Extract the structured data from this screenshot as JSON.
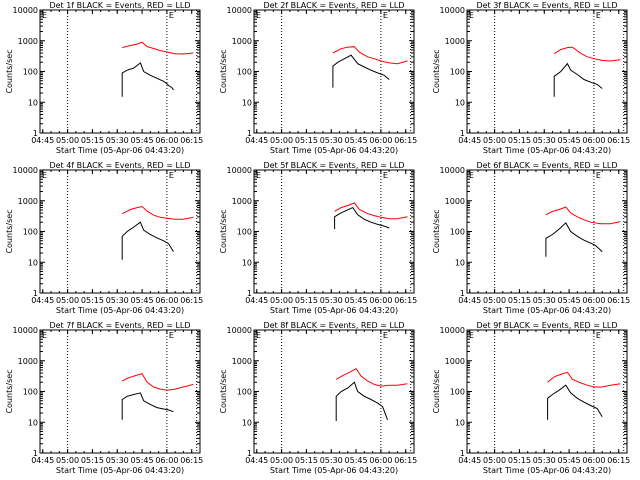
{
  "figure": {
    "ylabel": "Counts/sec",
    "xlabel": "Start Time (05-Apr-06 04:43:20)",
    "x_ticks": [
      "04:45",
      "05:00",
      "05:15",
      "05:30",
      "05:45",
      "06:00",
      "06:15"
    ],
    "y_ticks": [
      "1",
      "10",
      "100",
      "1000",
      "10000"
    ],
    "marker_label": "E",
    "colors": {
      "events": "#000000",
      "lld": "#ff0000"
    }
  },
  "chart_data": [
    {
      "type": "line",
      "title": "Det 1f BLACK = Events, RED = LLD",
      "xlabel": "Start Time (05-Apr-06 04:43:20)",
      "ylabel": "Counts/sec",
      "x_ticks": [
        "04:45",
        "05:00",
        "05:15",
        "05:30",
        "05:45",
        "06:00",
        "06:15"
      ],
      "ylim": [
        1,
        10000
      ],
      "y_scale": "log",
      "xlim": [
        "04:43:20",
        "06:20:00"
      ],
      "markers": [
        {
          "x": "05:00",
          "label": ""
        },
        {
          "x": "06:00",
          "label": "E"
        },
        {
          "x": "06:18",
          "label": ""
        }
      ],
      "series": [
        {
          "name": "Events",
          "color": "#000000",
          "x": [
            "05:33",
            "05:33",
            "05:36",
            "05:40",
            "05:44",
            "05:46",
            "05:50",
            "05:54",
            "05:58",
            "06:00",
            "06:01",
            "06:03",
            "06:04"
          ],
          "values": [
            15,
            90,
            110,
            130,
            190,
            100,
            75,
            60,
            48,
            40,
            35,
            30,
            25
          ]
        },
        {
          "name": "LLD",
          "color": "#ff0000",
          "x": [
            "05:33",
            "05:38",
            "05:42",
            "05:45",
            "05:48",
            "05:52",
            "05:56",
            "06:00",
            "06:05",
            "06:10",
            "06:16"
          ],
          "values": [
            600,
            700,
            780,
            900,
            650,
            560,
            480,
            430,
            380,
            370,
            400
          ]
        }
      ]
    },
    {
      "type": "line",
      "title": "Det 2f BLACK = Events, RED = LLD",
      "xlabel": "Start Time (05-Apr-06 04:43:20)",
      "ylabel": "Counts/sec",
      "x_ticks": [
        "04:45",
        "05:00",
        "05:15",
        "05:30",
        "05:45",
        "06:00",
        "06:15"
      ],
      "ylim": [
        1,
        10000
      ],
      "y_scale": "log",
      "xlim": [
        "04:43:20",
        "06:20:00"
      ],
      "markers": [
        {
          "x": "05:00",
          "label": ""
        },
        {
          "x": "06:00",
          "label": "E"
        },
        {
          "x": "06:18",
          "label": ""
        }
      ],
      "series": [
        {
          "name": "Events",
          "color": "#000000",
          "x": [
            "05:31",
            "05:31",
            "05:34",
            "05:38",
            "05:42",
            "05:46",
            "05:50",
            "05:54",
            "05:58",
            "06:02",
            "06:05"
          ],
          "values": [
            30,
            150,
            200,
            260,
            340,
            180,
            140,
            110,
            90,
            75,
            55
          ]
        },
        {
          "name": "LLD",
          "color": "#ff0000",
          "x": [
            "05:31",
            "05:36",
            "05:40",
            "05:44",
            "05:47",
            "05:52",
            "05:56",
            "06:00",
            "06:05",
            "06:10",
            "06:16"
          ],
          "values": [
            400,
            550,
            620,
            640,
            420,
            300,
            260,
            220,
            190,
            180,
            220
          ]
        }
      ]
    },
    {
      "type": "line",
      "title": "Det 3f BLACK = Events, RED = LLD",
      "xlabel": "Start Time (05-Apr-06 04:43:20)",
      "ylabel": "Counts/sec",
      "x_ticks": [
        "04:45",
        "05:00",
        "05:15",
        "05:30",
        "05:45",
        "06:00",
        "06:15"
      ],
      "ylim": [
        1,
        10000
      ],
      "y_scale": "log",
      "xlim": [
        "04:43:20",
        "06:20:00"
      ],
      "markers": [
        {
          "x": "05:00",
          "label": ""
        },
        {
          "x": "06:00",
          "label": "E"
        },
        {
          "x": "06:18",
          "label": ""
        }
      ],
      "series": [
        {
          "name": "Events",
          "color": "#000000",
          "x": [
            "05:36",
            "05:36",
            "05:40",
            "05:44",
            "05:46",
            "05:50",
            "05:54",
            "05:58",
            "06:02",
            "06:05"
          ],
          "values": [
            15,
            70,
            100,
            180,
            110,
            80,
            55,
            45,
            38,
            28
          ]
        },
        {
          "name": "LLD",
          "color": "#ff0000",
          "x": [
            "05:36",
            "05:40",
            "05:44",
            "05:47",
            "05:52",
            "05:56",
            "06:00",
            "06:05",
            "06:10",
            "06:16"
          ],
          "values": [
            380,
            520,
            600,
            620,
            390,
            300,
            260,
            230,
            220,
            240
          ]
        }
      ]
    },
    {
      "type": "line",
      "title": "Det 4f BLACK = Events, RED = LLD",
      "xlabel": "Start Time (05-Apr-06 04:43:20)",
      "ylabel": "Counts/sec",
      "x_ticks": [
        "04:45",
        "05:00",
        "05:15",
        "05:30",
        "05:45",
        "06:00",
        "06:15"
      ],
      "ylim": [
        1,
        10000
      ],
      "y_scale": "log",
      "xlim": [
        "04:43:20",
        "06:20:00"
      ],
      "markers": [
        {
          "x": "05:00",
          "label": ""
        },
        {
          "x": "06:00",
          "label": "E"
        },
        {
          "x": "06:18",
          "label": ""
        }
      ],
      "series": [
        {
          "name": "Events",
          "color": "#000000",
          "x": [
            "05:33",
            "05:33",
            "05:36",
            "05:40",
            "05:44",
            "05:46",
            "05:50",
            "05:54",
            "05:58",
            "06:01",
            "06:04"
          ],
          "values": [
            12,
            70,
            100,
            140,
            200,
            110,
            80,
            62,
            50,
            40,
            22
          ]
        },
        {
          "name": "LLD",
          "color": "#ff0000",
          "x": [
            "05:33",
            "05:38",
            "05:42",
            "05:45",
            "05:48",
            "05:52",
            "05:56",
            "06:00",
            "06:05",
            "06:10",
            "06:16"
          ],
          "values": [
            380,
            520,
            600,
            650,
            460,
            340,
            290,
            270,
            250,
            250,
            290
          ]
        }
      ]
    },
    {
      "type": "line",
      "title": "Det 5f BLACK = Events, RED = LLD",
      "xlabel": "Start Time (05-Apr-06 04:43:20)",
      "ylabel": "Counts/sec",
      "x_ticks": [
        "04:45",
        "05:00",
        "05:15",
        "05:30",
        "05:45",
        "06:00",
        "06:15"
      ],
      "ylim": [
        1,
        10000
      ],
      "y_scale": "log",
      "xlim": [
        "04:43:20",
        "06:20:00"
      ],
      "markers": [
        {
          "x": "05:00",
          "label": ""
        },
        {
          "x": "06:00",
          "label": "E"
        },
        {
          "x": "06:18",
          "label": ""
        }
      ],
      "series": [
        {
          "name": "Events",
          "color": "#000000",
          "x": [
            "05:32",
            "05:32",
            "05:35",
            "05:39",
            "05:43",
            "05:46",
            "05:50",
            "05:54",
            "05:58",
            "06:02",
            "06:05"
          ],
          "values": [
            120,
            300,
            380,
            480,
            600,
            350,
            250,
            200,
            170,
            150,
            130
          ]
        },
        {
          "name": "LLD",
          "color": "#ff0000",
          "x": [
            "05:32",
            "05:36",
            "05:40",
            "05:44",
            "05:47",
            "05:52",
            "05:56",
            "06:00",
            "06:05",
            "06:10",
            "06:16"
          ],
          "values": [
            450,
            600,
            700,
            850,
            520,
            380,
            330,
            290,
            260,
            260,
            300
          ]
        }
      ]
    },
    {
      "type": "line",
      "title": "Det 6f BLACK = Events, RED = LLD",
      "xlabel": "Start Time (05-Apr-06 04:43:20)",
      "ylabel": "Counts/sec",
      "x_ticks": [
        "04:45",
        "05:00",
        "05:15",
        "05:30",
        "05:45",
        "06:00",
        "06:15"
      ],
      "ylim": [
        1,
        10000
      ],
      "y_scale": "log",
      "xlim": [
        "04:43:20",
        "06:20:00"
      ],
      "markers": [
        {
          "x": "05:00",
          "label": ""
        },
        {
          "x": "06:00",
          "label": "E"
        },
        {
          "x": "06:18",
          "label": ""
        }
      ],
      "series": [
        {
          "name": "Events",
          "color": "#000000",
          "x": [
            "05:31",
            "05:31",
            "05:35",
            "05:39",
            "05:43",
            "05:46",
            "05:50",
            "05:54",
            "05:58",
            "06:01",
            "06:05"
          ],
          "values": [
            15,
            60,
            80,
            120,
            190,
            100,
            70,
            52,
            42,
            35,
            22
          ]
        },
        {
          "name": "LLD",
          "color": "#ff0000",
          "x": [
            "05:31",
            "05:35",
            "05:39",
            "05:43",
            "05:46",
            "05:50",
            "05:54",
            "05:58",
            "06:04",
            "06:10",
            "06:16"
          ],
          "values": [
            350,
            450,
            520,
            620,
            400,
            300,
            240,
            200,
            180,
            180,
            210
          ]
        }
      ]
    },
    {
      "type": "line",
      "title": "Det 7f BLACK = Events, RED = LLD",
      "xlabel": "Start Time (05-Apr-06 04:43:20)",
      "ylabel": "Counts/sec",
      "x_ticks": [
        "04:45",
        "05:00",
        "05:15",
        "05:30",
        "05:45",
        "06:00",
        "06:15"
      ],
      "ylim": [
        1,
        10000
      ],
      "y_scale": "log",
      "xlim": [
        "04:43:20",
        "06:20:00"
      ],
      "markers": [
        {
          "x": "05:00",
          "label": ""
        },
        {
          "x": "06:00",
          "label": "E"
        },
        {
          "x": "06:18",
          "label": ""
        }
      ],
      "series": [
        {
          "name": "Events",
          "color": "#000000",
          "x": [
            "05:33",
            "05:33",
            "05:36",
            "05:40",
            "05:44",
            "05:46",
            "05:50",
            "05:54",
            "05:58",
            "06:01",
            "06:04"
          ],
          "values": [
            12,
            55,
            70,
            80,
            90,
            50,
            38,
            30,
            27,
            25,
            22
          ]
        },
        {
          "name": "LLD",
          "color": "#ff0000",
          "x": [
            "05:33",
            "05:37",
            "05:41",
            "05:45",
            "05:48",
            "05:52",
            "05:56",
            "06:00",
            "06:05",
            "06:10",
            "06:16"
          ],
          "values": [
            220,
            280,
            330,
            380,
            200,
            140,
            120,
            110,
            120,
            140,
            170
          ]
        }
      ]
    },
    {
      "type": "line",
      "title": "Det 8f BLACK = Events, RED = LLD",
      "xlabel": "Start Time (05-Apr-06 04:43:20)",
      "ylabel": "Counts/sec",
      "x_ticks": [
        "04:45",
        "05:00",
        "05:15",
        "05:30",
        "05:45",
        "06:00",
        "06:15"
      ],
      "ylim": [
        1,
        10000
      ],
      "y_scale": "log",
      "xlim": [
        "04:43:20",
        "06:20:00"
      ],
      "markers": [
        {
          "x": "05:00",
          "label": ""
        },
        {
          "x": "06:00",
          "label": "E"
        },
        {
          "x": "06:18",
          "label": ""
        }
      ],
      "series": [
        {
          "name": "Events",
          "color": "#000000",
          "x": [
            "05:33",
            "05:33",
            "05:36",
            "05:40",
            "05:44",
            "05:46",
            "05:50",
            "05:54",
            "05:58",
            "06:01",
            "06:04"
          ],
          "values": [
            11,
            70,
            100,
            130,
            200,
            100,
            70,
            55,
            42,
            32,
            12
          ]
        },
        {
          "name": "LLD",
          "color": "#ff0000",
          "x": [
            "05:33",
            "05:37",
            "05:41",
            "05:45",
            "05:48",
            "05:52",
            "05:56",
            "06:00",
            "06:05",
            "06:10",
            "06:16"
          ],
          "values": [
            250,
            330,
            420,
            550,
            320,
            220,
            170,
            150,
            160,
            160,
            180
          ]
        }
      ]
    },
    {
      "type": "line",
      "title": "Det 9f BLACK = Events, RED = LLD",
      "xlabel": "Start Time (05-Apr-06 04:43:20)",
      "ylabel": "Counts/sec",
      "x_ticks": [
        "04:45",
        "05:00",
        "05:15",
        "05:30",
        "05:45",
        "06:00",
        "06:15"
      ],
      "ylim": [
        1,
        10000
      ],
      "y_scale": "log",
      "xlim": [
        "04:43:20",
        "06:20:00"
      ],
      "markers": [
        {
          "x": "05:00",
          "label": ""
        },
        {
          "x": "06:00",
          "label": "E"
        },
        {
          "x": "06:18",
          "label": ""
        }
      ],
      "series": [
        {
          "name": "Events",
          "color": "#000000",
          "x": [
            "05:32",
            "05:32",
            "05:35",
            "05:39",
            "05:43",
            "05:46",
            "05:50",
            "05:54",
            "05:58",
            "06:02",
            "06:05"
          ],
          "values": [
            12,
            60,
            80,
            110,
            160,
            90,
            60,
            45,
            35,
            28,
            15
          ]
        },
        {
          "name": "LLD",
          "color": "#ff0000",
          "x": [
            "05:32",
            "05:36",
            "05:40",
            "05:44",
            "05:47",
            "05:52",
            "05:56",
            "06:00",
            "06:05",
            "06:10",
            "06:16"
          ],
          "values": [
            200,
            300,
            360,
            420,
            250,
            190,
            160,
            140,
            140,
            160,
            180
          ]
        }
      ]
    }
  ]
}
